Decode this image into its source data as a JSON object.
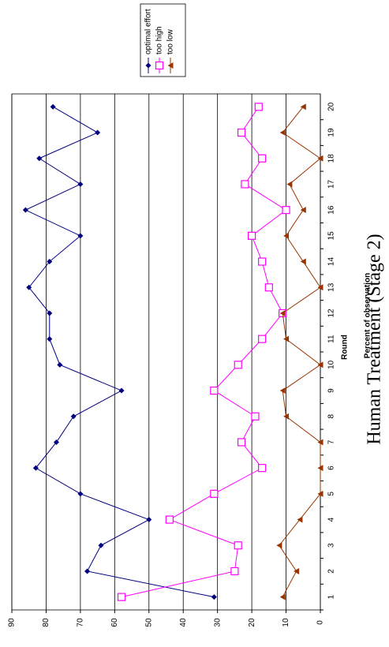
{
  "chart_data": {
    "type": "line",
    "title": "Human Treatment (Stage 2)",
    "x_label": "Round",
    "y_label": "Percent of observation",
    "categories": [
      "1",
      "2",
      "3",
      "4",
      "5",
      "6",
      "7",
      "8",
      "9",
      "10",
      "11",
      "12",
      "13",
      "14",
      "15",
      "16",
      "17",
      "18",
      "19",
      "20"
    ],
    "series": [
      {
        "name": "optimal effort",
        "color": "#000080",
        "marker": "diamond",
        "values": [
          31,
          68,
          64,
          50,
          70,
          83,
          77,
          72,
          58,
          76,
          79,
          79,
          85,
          79,
          70,
          86,
          70,
          82,
          65,
          78
        ]
      },
      {
        "name": "too high",
        "color": "#ff00ff",
        "marker": "square",
        "values": [
          58,
          25,
          24,
          44,
          31,
          17,
          23,
          19,
          31,
          24,
          17,
          11,
          15,
          17,
          20,
          10,
          22,
          17,
          23,
          18
        ]
      },
      {
        "name": "too low",
        "color": "#993300",
        "marker": "triangle",
        "values": [
          11,
          7,
          12,
          6,
          0,
          0,
          0,
          10,
          11,
          0,
          10,
          11,
          0,
          5,
          10,
          5,
          9,
          0,
          11,
          5
        ]
      }
    ],
    "ylim": [
      0,
      90
    ],
    "yticks": [
      0,
      10,
      20,
      30,
      40,
      50,
      60,
      70,
      80,
      90
    ],
    "grid": true
  }
}
